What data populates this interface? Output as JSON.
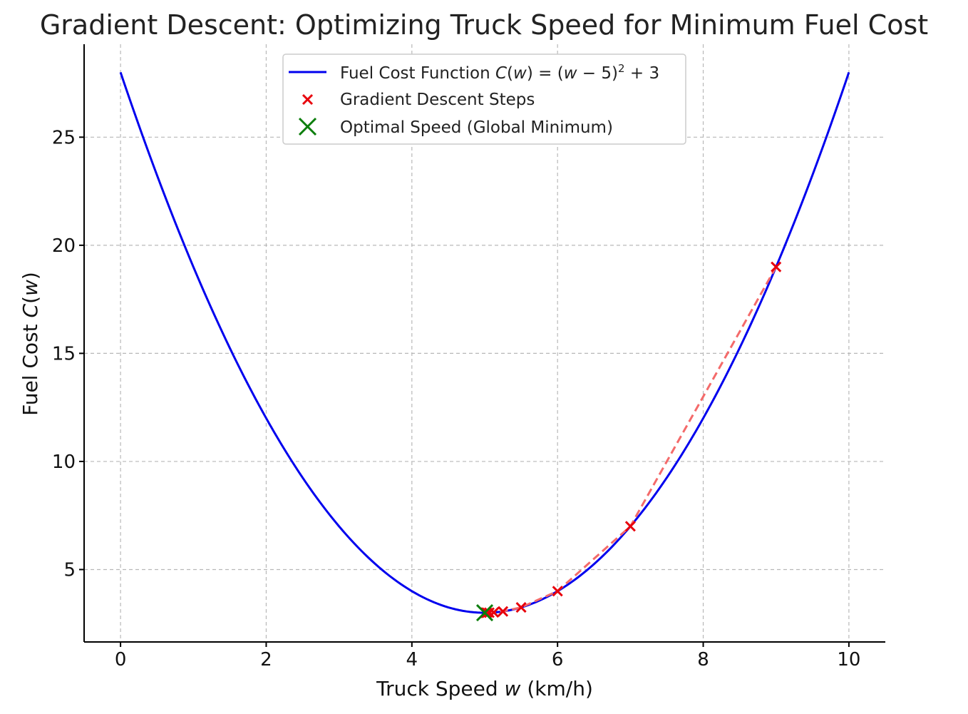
{
  "chart_data": {
    "type": "line",
    "title": "Gradient Descent: Optimizing Truck Speed for Minimum Fuel Cost",
    "xlabel": "Truck Speed w (km/h)",
    "ylabel": "Fuel Cost C(w)",
    "xlim": [
      -0.5,
      10.5
    ],
    "ylim": [
      1.65,
      29.3
    ],
    "xticks": [
      0,
      2,
      4,
      6,
      8,
      10
    ],
    "yticks": [
      5,
      10,
      15,
      20,
      25
    ],
    "grid": true,
    "legend_position": "upper-center",
    "series": [
      {
        "name": "Fuel Cost Function C(w) = (w − 5)² + 3",
        "kind": "line",
        "function": "(w-5)^2+3",
        "x_range": [
          0,
          10
        ],
        "color": "#0000ee"
      },
      {
        "name": "Gradient Descent Steps",
        "kind": "scatter",
        "marker": "x",
        "color": "#e8000b",
        "path_color": "#f46a6a",
        "x": [
          9,
          7,
          6,
          5.5,
          5.25,
          5.125,
          5.0625,
          5.03125,
          5.0156,
          5.0078
        ],
        "y": [
          19,
          7,
          4,
          3.25,
          3.0625,
          3.0156,
          3.0039,
          3.001,
          3.0002,
          3.0001
        ]
      },
      {
        "name": "Optimal Speed (Global Minimum)",
        "kind": "scatter",
        "marker": "X",
        "color": "#0a7d0a",
        "x": [
          5
        ],
        "y": [
          3
        ]
      }
    ]
  }
}
